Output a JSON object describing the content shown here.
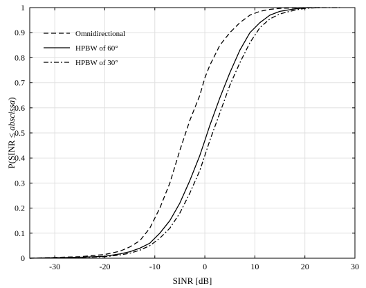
{
  "chart_data": {
    "type": "line",
    "title": "",
    "xlabel": "SINR [dB]",
    "ylabel": {
      "prefix": "P(SINR ≤ ",
      "italic": "abscissa",
      "suffix": ")"
    },
    "xlim": [
      -35,
      30
    ],
    "ylim": [
      0,
      1
    ],
    "xticks": [
      -30,
      -20,
      -10,
      0,
      10,
      20,
      30
    ],
    "yticks": [
      0,
      0.1,
      0.2,
      0.3,
      0.4,
      0.5,
      0.6,
      0.7,
      0.8,
      0.9,
      1
    ],
    "xtick_labels": [
      "-30",
      "-20",
      "-10",
      "0",
      "10",
      "20",
      "30"
    ],
    "ytick_labels": [
      "0",
      "0.1",
      "0.2",
      "0.3",
      "0.4",
      "0.5",
      "0.6",
      "0.7",
      "0.8",
      "0.9",
      "1"
    ],
    "grid": true,
    "legend_position": "top-left",
    "series": [
      {
        "name": "Omnidirectional",
        "style": "dashed",
        "color": "#000000",
        "x": [
          -35,
          -30,
          -25,
          -20,
          -17,
          -15,
          -13,
          -11,
          -9,
          -7,
          -5,
          -3,
          -1,
          0,
          1,
          3,
          5,
          7,
          9,
          11,
          13,
          15,
          18,
          20,
          23
        ],
        "y": [
          0.0,
          0.003,
          0.006,
          0.015,
          0.028,
          0.045,
          0.07,
          0.12,
          0.2,
          0.3,
          0.43,
          0.55,
          0.65,
          0.72,
          0.77,
          0.85,
          0.9,
          0.94,
          0.97,
          0.985,
          0.993,
          0.997,
          0.999,
          1.0,
          1.0
        ]
      },
      {
        "name": "HPBW of 60°",
        "style": "solid",
        "color": "#000000",
        "x": [
          -35,
          -30,
          -25,
          -20,
          -17,
          -15,
          -13,
          -11,
          -9,
          -7,
          -5,
          -3,
          -1,
          0,
          1,
          3,
          5,
          7,
          9,
          11,
          13,
          15,
          18,
          20,
          23
        ],
        "y": [
          0.0,
          0.002,
          0.004,
          0.008,
          0.017,
          0.026,
          0.04,
          0.06,
          0.1,
          0.15,
          0.22,
          0.31,
          0.41,
          0.47,
          0.53,
          0.64,
          0.74,
          0.83,
          0.9,
          0.94,
          0.97,
          0.985,
          0.995,
          0.999,
          1.0
        ]
      },
      {
        "name": "HPBW of 30°",
        "style": "dashdot",
        "color": "#000000",
        "x": [
          -35,
          -30,
          -25,
          -20,
          -17,
          -15,
          -13,
          -11,
          -9,
          -7,
          -5,
          -3,
          -1,
          0,
          1,
          3,
          5,
          7,
          9,
          11,
          13,
          15,
          18,
          20,
          23,
          27
        ],
        "y": [
          0.0,
          0.002,
          0.003,
          0.006,
          0.013,
          0.02,
          0.032,
          0.05,
          0.08,
          0.12,
          0.18,
          0.26,
          0.35,
          0.41,
          0.47,
          0.58,
          0.69,
          0.78,
          0.86,
          0.92,
          0.955,
          0.975,
          0.99,
          0.997,
          1.0,
          1.0
        ]
      }
    ]
  }
}
